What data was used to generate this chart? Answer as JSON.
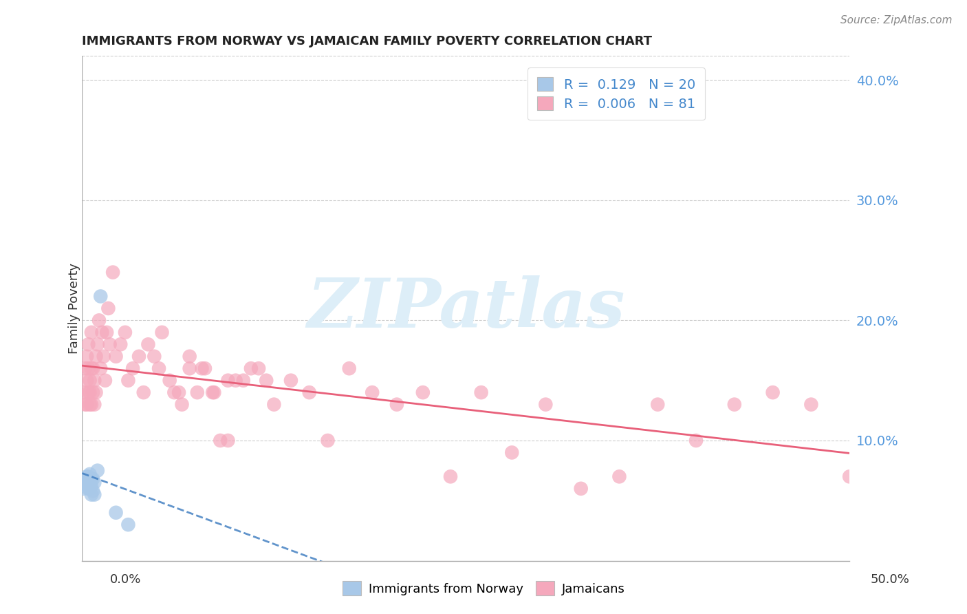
{
  "title": "IMMIGRANTS FROM NORWAY VS JAMAICAN FAMILY POVERTY CORRELATION CHART",
  "source": "Source: ZipAtlas.com",
  "ylabel": "Family Poverty",
  "legend_label1": "Immigrants from Norway",
  "legend_label2": "Jamaicans",
  "r1": 0.129,
  "n1": 20,
  "r2": 0.006,
  "n2": 81,
  "xlim": [
    0.0,
    0.5
  ],
  "ylim": [
    0.0,
    0.42
  ],
  "yticks": [
    0.1,
    0.2,
    0.3,
    0.4
  ],
  "ytick_labels": [
    "10.0%",
    "20.0%",
    "30.0%",
    "40.0%"
  ],
  "color_norway": "#a8c8e8",
  "color_jamaica": "#f5a8bc",
  "color_norway_line": "#3a7abf",
  "color_jamaica_line": "#e8607a",
  "watermark_color": "#ddeef8",
  "norway_x": [
    0.001,
    0.002,
    0.003,
    0.003,
    0.004,
    0.004,
    0.005,
    0.005,
    0.005,
    0.006,
    0.006,
    0.006,
    0.007,
    0.007,
    0.008,
    0.008,
    0.01,
    0.012,
    0.022,
    0.03
  ],
  "norway_y": [
    0.06,
    0.065,
    0.065,
    0.07,
    0.06,
    0.07,
    0.06,
    0.065,
    0.072,
    0.055,
    0.062,
    0.068,
    0.058,
    0.068,
    0.055,
    0.065,
    0.075,
    0.22,
    0.04,
    0.03
  ],
  "jamaica_x": [
    0.001,
    0.002,
    0.002,
    0.003,
    0.003,
    0.003,
    0.004,
    0.004,
    0.004,
    0.005,
    0.005,
    0.005,
    0.006,
    0.006,
    0.006,
    0.007,
    0.007,
    0.008,
    0.008,
    0.009,
    0.009,
    0.01,
    0.011,
    0.012,
    0.013,
    0.014,
    0.015,
    0.016,
    0.017,
    0.018,
    0.02,
    0.022,
    0.025,
    0.028,
    0.03,
    0.033,
    0.037,
    0.04,
    0.043,
    0.047,
    0.052,
    0.057,
    0.063,
    0.07,
    0.078,
    0.086,
    0.095,
    0.105,
    0.115,
    0.125,
    0.136,
    0.148,
    0.16,
    0.174,
    0.189,
    0.205,
    0.222,
    0.24,
    0.26,
    0.28,
    0.302,
    0.325,
    0.35,
    0.375,
    0.4,
    0.425,
    0.45,
    0.475,
    0.5,
    0.05,
    0.06,
    0.065,
    0.07,
    0.075,
    0.08,
    0.085,
    0.09,
    0.095,
    0.1,
    0.11,
    0.12
  ],
  "jamaica_y": [
    0.14,
    0.13,
    0.16,
    0.13,
    0.15,
    0.17,
    0.14,
    0.16,
    0.18,
    0.13,
    0.15,
    0.14,
    0.13,
    0.16,
    0.19,
    0.14,
    0.16,
    0.13,
    0.15,
    0.14,
    0.17,
    0.18,
    0.2,
    0.16,
    0.19,
    0.17,
    0.15,
    0.19,
    0.21,
    0.18,
    0.24,
    0.17,
    0.18,
    0.19,
    0.15,
    0.16,
    0.17,
    0.14,
    0.18,
    0.17,
    0.19,
    0.15,
    0.14,
    0.17,
    0.16,
    0.14,
    0.1,
    0.15,
    0.16,
    0.13,
    0.15,
    0.14,
    0.1,
    0.16,
    0.14,
    0.13,
    0.14,
    0.07,
    0.14,
    0.09,
    0.13,
    0.06,
    0.07,
    0.13,
    0.1,
    0.13,
    0.14,
    0.13,
    0.07,
    0.16,
    0.14,
    0.13,
    0.16,
    0.14,
    0.16,
    0.14,
    0.1,
    0.15,
    0.15,
    0.16,
    0.15
  ]
}
